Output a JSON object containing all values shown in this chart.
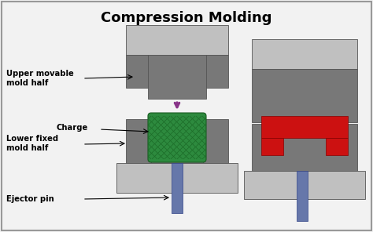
{
  "title": "Compression Molding",
  "title_fontsize": 13,
  "title_fontweight": "bold",
  "bg_color": "#f2f2f2",
  "border_color": "#999999",
  "light_gray": "#c0c0c0",
  "dark_gray": "#787878",
  "green_charge": "#2d8a3e",
  "red_molded": "#cc1111",
  "blue_pin": "#6677aa",
  "purple_arrow": "#883388",
  "label_fontsize": 7.2,
  "labels": {
    "upper_mold": "Upper movable\nmold half",
    "charge": "Charge",
    "lower_mold": "Lower fixed\nmold half",
    "ejector": "Ejector pin"
  }
}
